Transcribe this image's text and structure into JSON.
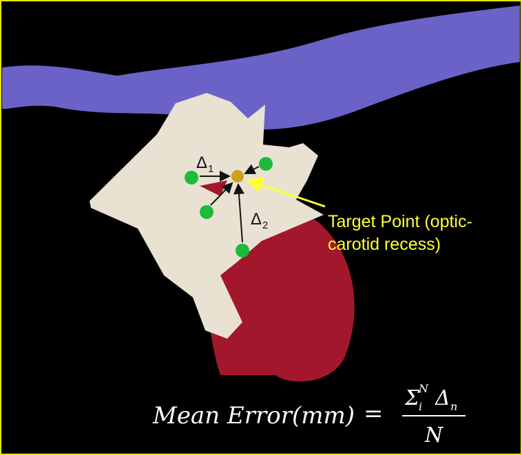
{
  "annotations": {
    "delta_1": {
      "symbol": "Δ",
      "subscript": "1"
    },
    "delta_2": {
      "symbol": "Δ",
      "subscript": "2"
    },
    "target_label": {
      "lines": [
        "Target Point (optic-",
        "carotid recess)"
      ]
    }
  },
  "formula": {
    "lhs": "Mean Error(mm)",
    "equals": "=",
    "sum": "Σ",
    "sum_lower": "i",
    "sum_upper": "N",
    "term": "Δ",
    "term_subscript": "n",
    "denominator": "N"
  }
}
